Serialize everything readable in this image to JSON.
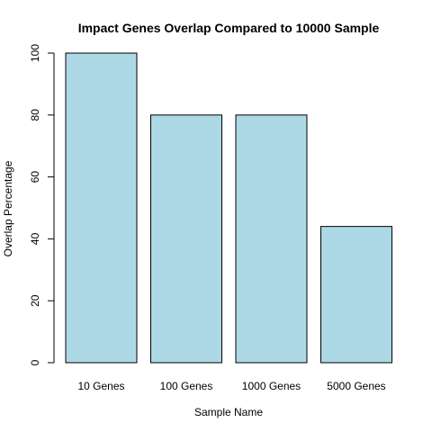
{
  "chart_data": {
    "type": "bar",
    "title": "Impact Genes Overlap Compared to 10000 Sample",
    "xlabel": "Sample Name",
    "ylabel": "Overlap Percentage",
    "categories": [
      "10 Genes",
      "100 Genes",
      "1000 Genes",
      "5000 Genes"
    ],
    "values": [
      100,
      80,
      80,
      44
    ],
    "ylim": [
      0,
      100
    ],
    "yticks": [
      "0",
      "20",
      "40",
      "60",
      "80",
      "100"
    ],
    "bar_color": "#ADD8E6",
    "bar_stroke": "#000000",
    "grid": false,
    "legend": "none"
  }
}
